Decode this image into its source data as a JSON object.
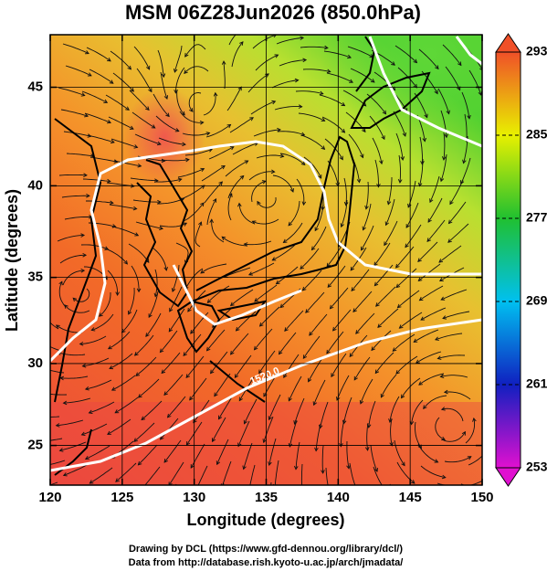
{
  "chart_data": {
    "type": "map",
    "projection": "mercator",
    "title": "MSM 06Z28Jun2026 (850.0hPa)",
    "x_label": "Longitude (degrees)",
    "y_label": "Latitude  (degrees)",
    "xlim": [
      120,
      150
    ],
    "ylim": [
      22.5,
      47.5
    ],
    "xticks": [
      120,
      125,
      130,
      135,
      140,
      145,
      150
    ],
    "yticks": [
      25,
      30,
      35,
      40,
      45
    ],
    "grid": true,
    "annotations": [
      "1520.0"
    ],
    "colorbar": {
      "lim": [
        253,
        293
      ],
      "ticks": [
        253,
        261,
        269,
        277,
        285,
        293
      ],
      "colors": [
        "#e010d0",
        "#1020c0",
        "#00c0f0",
        "#20c030",
        "#e8f000",
        "#f05028"
      ]
    }
  },
  "footer": [
    "Drawing by DCL (https://www.gfd-dennou.org/library/dcl/)",
    "Data from http://database.rish.kyoto-u.ac.jp/arch/jmadata/"
  ]
}
